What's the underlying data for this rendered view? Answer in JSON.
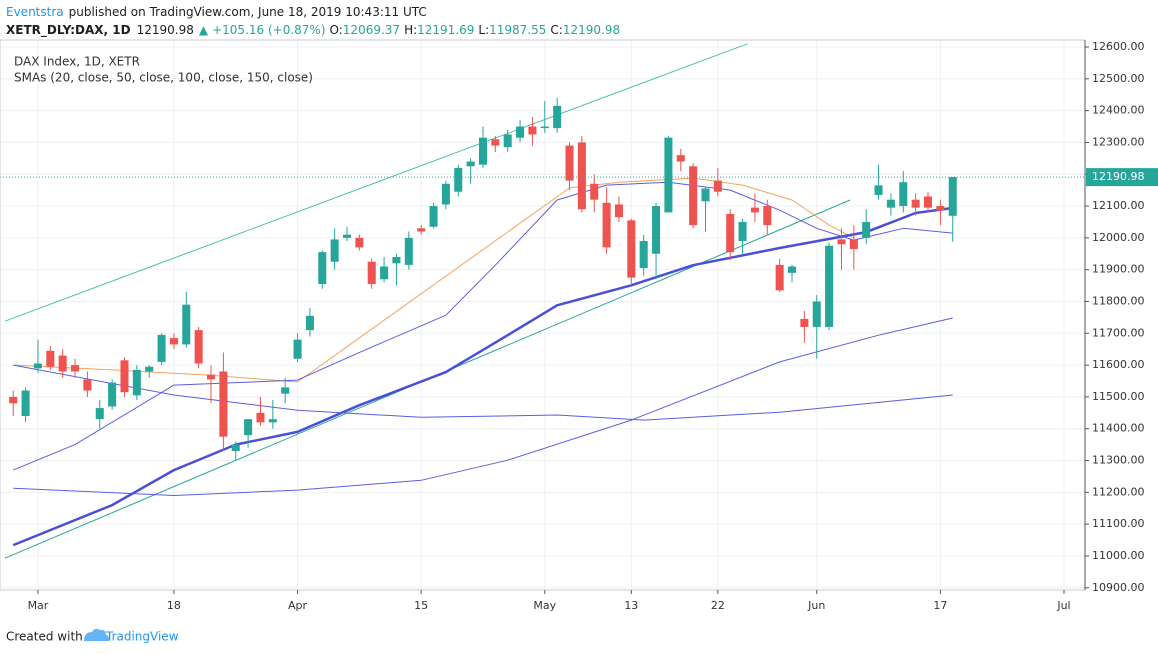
{
  "header": {
    "author": "Eventstra",
    "published": "published on TradingView.com, June 18, 2019 10:43:11 UTC",
    "symbol": "XETR_DLY:DAX, 1D",
    "arrow": "▲",
    "change": "+105.16 (+0.87%)",
    "open_label": "O:",
    "high_label": "H:",
    "low_label": "L:",
    "close_label": "C:"
  },
  "chart_data": {
    "type": "candlestick",
    "legend_title": "DAX Index, 1D, XETR",
    "legend_studies": "SMAs (20, close, 50, close, 100, close, 150, close)",
    "up_color": "#26a69a",
    "down_color": "#ef5350",
    "ohlc": [
      [
        11500,
        11520,
        11440,
        11480
      ],
      [
        11440,
        11530,
        11420,
        11520
      ],
      [
        11590,
        11680,
        11575,
        11605
      ],
      [
        11645,
        11660,
        11585,
        11595
      ],
      [
        11630,
        11650,
        11560,
        11580
      ],
      [
        11600,
        11620,
        11560,
        11580
      ],
      [
        11555,
        11580,
        11500,
        11520
      ],
      [
        11430,
        11490,
        11400,
        11465
      ],
      [
        11470,
        11555,
        11460,
        11545
      ],
      [
        11615,
        11625,
        11500,
        11515
      ],
      [
        11505,
        11600,
        11490,
        11585
      ],
      [
        11580,
        11600,
        11560,
        11595
      ],
      [
        11610,
        11700,
        11600,
        11695
      ],
      [
        11685,
        11700,
        11650,
        11665
      ],
      [
        11665,
        11830,
        11655,
        11790
      ],
      [
        11710,
        11720,
        11590,
        11605
      ],
      [
        11570,
        11600,
        11480,
        11555
      ],
      [
        11580,
        11640,
        11330,
        11375
      ],
      [
        11330,
        11360,
        11300,
        11350
      ],
      [
        11380,
        11430,
        11340,
        11430
      ],
      [
        11450,
        11500,
        11410,
        11420
      ],
      [
        11420,
        11490,
        11400,
        11430
      ],
      [
        11510,
        11560,
        11480,
        11530
      ],
      [
        11620,
        11700,
        11610,
        11680
      ],
      [
        11710,
        11780,
        11690,
        11755
      ],
      [
        11855,
        11960,
        11840,
        11955
      ],
      [
        11925,
        12030,
        11900,
        11995
      ],
      [
        12000,
        12035,
        11990,
        12010
      ],
      [
        12000,
        12010,
        11960,
        11970
      ],
      [
        11925,
        11935,
        11840,
        11855
      ],
      [
        11870,
        11940,
        11860,
        11910
      ],
      [
        11920,
        11950,
        11850,
        11940
      ],
      [
        11915,
        12020,
        11900,
        12000
      ],
      [
        12030,
        12040,
        12010,
        12020
      ],
      [
        12035,
        12110,
        12030,
        12100
      ],
      [
        12105,
        12180,
        12090,
        12170
      ],
      [
        12145,
        12230,
        12130,
        12220
      ],
      [
        12225,
        12250,
        12170,
        12240
      ],
      [
        12230,
        12350,
        12220,
        12315
      ],
      [
        12310,
        12320,
        12270,
        12290
      ],
      [
        12285,
        12340,
        12270,
        12325
      ],
      [
        12315,
        12370,
        12300,
        12350
      ],
      [
        12350,
        12380,
        12290,
        12325
      ],
      [
        12345,
        12430,
        12330,
        12350
      ],
      [
        12345,
        12440,
        12330,
        12415
      ],
      [
        12290,
        12300,
        12150,
        12180
      ],
      [
        12300,
        12320,
        12080,
        12090
      ],
      [
        12170,
        12200,
        12080,
        12120
      ],
      [
        12110,
        12160,
        11950,
        11970
      ],
      [
        12105,
        12130,
        12050,
        12065
      ],
      [
        12055,
        12060,
        11850,
        11875
      ],
      [
        11905,
        12010,
        11880,
        11990
      ],
      [
        11950,
        12110,
        11870,
        12100
      ],
      [
        12080,
        12320,
        12080,
        12315
      ],
      [
        12260,
        12280,
        12210,
        12240
      ],
      [
        12225,
        12235,
        12030,
        12040
      ],
      [
        12115,
        12160,
        12020,
        12155
      ],
      [
        12180,
        12220,
        12130,
        12145
      ],
      [
        12075,
        12090,
        11930,
        11955
      ],
      [
        11990,
        12060,
        11950,
        12050
      ],
      [
        12095,
        12140,
        12050,
        12080
      ],
      [
        12100,
        12120,
        12010,
        12040
      ],
      [
        11915,
        11935,
        11830,
        11835
      ],
      [
        11890,
        11915,
        11860,
        11910
      ],
      [
        11745,
        11770,
        11670,
        11720
      ],
      [
        11720,
        11820,
        11620,
        11800
      ],
      [
        11720,
        11985,
        11710,
        11975
      ],
      [
        11995,
        12030,
        11900,
        11980
      ],
      [
        11995,
        12040,
        11900,
        11965
      ],
      [
        12000,
        12090,
        11980,
        12050
      ],
      [
        12135,
        12230,
        12120,
        12165
      ],
      [
        12095,
        12140,
        12070,
        12120
      ],
      [
        12100,
        12210,
        12080,
        12175
      ],
      [
        12120,
        12140,
        12070,
        12095
      ],
      [
        12130,
        12145,
        12080,
        12095
      ],
      [
        12100,
        12120,
        12040,
        12085.82
      ],
      [
        12069.37,
        12191.69,
        11987.55,
        12190.98
      ]
    ],
    "last_price": 12190.98,
    "lines": [
      {
        "color": "#f5a25d",
        "width": 1,
        "x": [
          0,
          8,
          16,
          23,
          45,
          49,
          55,
          59,
          63,
          66,
          68
        ],
        "values": [
          11600,
          11585,
          11568,
          11547,
          12157,
          12175,
          12188,
          12166,
          12119,
          12040,
          12000
        ]
      },
      {
        "color": "#5a5ee0",
        "width": 1,
        "x": [
          0,
          5,
          13,
          23,
          28,
          35,
          39,
          44,
          48,
          53,
          58,
          62,
          65,
          68,
          72,
          76
        ],
        "values": [
          11270,
          11350,
          11537,
          11553,
          11640,
          11757,
          11914,
          12119,
          12166,
          12175,
          12150,
          12087,
          12030,
          11993,
          12030,
          12015
        ]
      },
      {
        "color": "#4a4fd8",
        "width": 2.5,
        "x": [
          0,
          8,
          13,
          18,
          23,
          28,
          35,
          40,
          44,
          50,
          55,
          62,
          69,
          73,
          76
        ],
        "values": [
          11034,
          11160,
          11270,
          11350,
          11390,
          11474,
          11578,
          11694,
          11788,
          11851,
          11914,
          11968,
          12018,
          12078,
          12094
        ]
      },
      {
        "color": "#5a5ee0",
        "width": 1,
        "x": [
          0,
          13,
          23,
          33,
          44,
          51,
          62,
          76
        ],
        "values": [
          11600,
          11506,
          11458,
          11436,
          11443,
          11427,
          11452,
          11506
        ]
      },
      {
        "color": "#5a5ee0",
        "width": 1,
        "x": [
          0,
          13,
          23,
          33,
          40,
          50,
          62,
          70,
          76
        ],
        "values": [
          11213,
          11190,
          11207,
          11238,
          11301,
          11427,
          11610,
          11694,
          11748
        ]
      }
    ],
    "trendlines": [
      {
        "color": "#4fbfae",
        "x": [
          -0.67,
          59.4
        ],
        "values": [
          11738,
          12610
        ]
      },
      {
        "color": "#26a69a",
        "x": [
          -0.67,
          67.7
        ],
        "values": [
          10993,
          12119
        ]
      }
    ],
    "xlim": [
      -1.07,
      86.7
    ],
    "xticks": [
      {
        "value": 2,
        "label": "Mar"
      },
      {
        "value": 13,
        "label": "18"
      },
      {
        "value": 23,
        "label": "Apr"
      },
      {
        "value": 33,
        "label": "15"
      },
      {
        "value": 43,
        "label": "May"
      },
      {
        "value": 50,
        "label": "13"
      },
      {
        "value": 57,
        "label": "22"
      },
      {
        "value": 65,
        "label": "Jun"
      },
      {
        "value": 75,
        "label": "17"
      },
      {
        "value": 85,
        "label": "Jul"
      }
    ],
    "ylim": [
      10893,
      12622
    ],
    "yticks": [
      {
        "value": 10900,
        "label": "10900.00"
      },
      {
        "value": 11000,
        "label": "11000.00"
      },
      {
        "value": 11100,
        "label": "11100.00"
      },
      {
        "value": 11200,
        "label": "11200.00"
      },
      {
        "value": 11300,
        "label": "11300.00"
      },
      {
        "value": 11400,
        "label": "11400.00"
      },
      {
        "value": 11500,
        "label": "11500.00"
      },
      {
        "value": 11600,
        "label": "11600.00"
      },
      {
        "value": 11700,
        "label": "11700.00"
      },
      {
        "value": 11800,
        "label": "11800.00"
      },
      {
        "value": 11900,
        "label": "11900.00"
      },
      {
        "value": 12000,
        "label": "12000.00"
      },
      {
        "value": 12100,
        "label": "12100.00"
      },
      {
        "value": 12200,
        "label": "12200.00"
      },
      {
        "value": 12300,
        "label": "12300.00"
      },
      {
        "value": 12400,
        "label": "12400.00"
      },
      {
        "value": 12500,
        "label": "12500.00"
      },
      {
        "value": 12600,
        "label": "12600.00"
      }
    ],
    "grid": true
  },
  "footer": {
    "created": "Created with",
    "brand": "TradingView"
  }
}
